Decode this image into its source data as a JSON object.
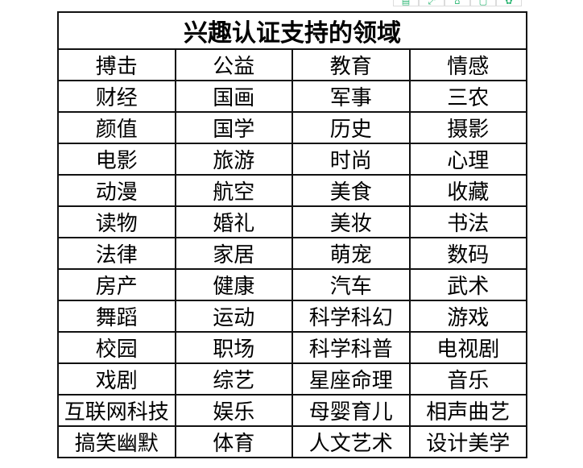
{
  "toolbar": {
    "icons": [
      "document-icon",
      "expand-icon",
      "save-icon",
      "crop-icon",
      "settings-icon"
    ]
  },
  "table": {
    "title": "兴趣认证支持的领域",
    "rows": [
      [
        "搏击",
        "公益",
        "教育",
        "情感"
      ],
      [
        "财经",
        "国画",
        "军事",
        "三农"
      ],
      [
        "颜值",
        "国学",
        "历史",
        "摄影"
      ],
      [
        "电影",
        "旅游",
        "时尚",
        "心理"
      ],
      [
        "动漫",
        "航空",
        "美食",
        "收藏"
      ],
      [
        "读物",
        "婚礼",
        "美妆",
        "书法"
      ],
      [
        "法律",
        "家居",
        "萌宠",
        "数码"
      ],
      [
        "房产",
        "健康",
        "汽车",
        "武术"
      ],
      [
        "舞蹈",
        "运动",
        "科学科幻",
        "游戏"
      ],
      [
        "校园",
        "职场",
        "科学科普",
        "电视剧"
      ],
      [
        "戏剧",
        "综艺",
        "星座命理",
        "音乐"
      ],
      [
        "互联网科技",
        "娱乐",
        "母婴育儿",
        "相声曲艺"
      ],
      [
        "搞笑幽默",
        "体育",
        "人文艺术",
        "设计美学"
      ]
    ]
  }
}
